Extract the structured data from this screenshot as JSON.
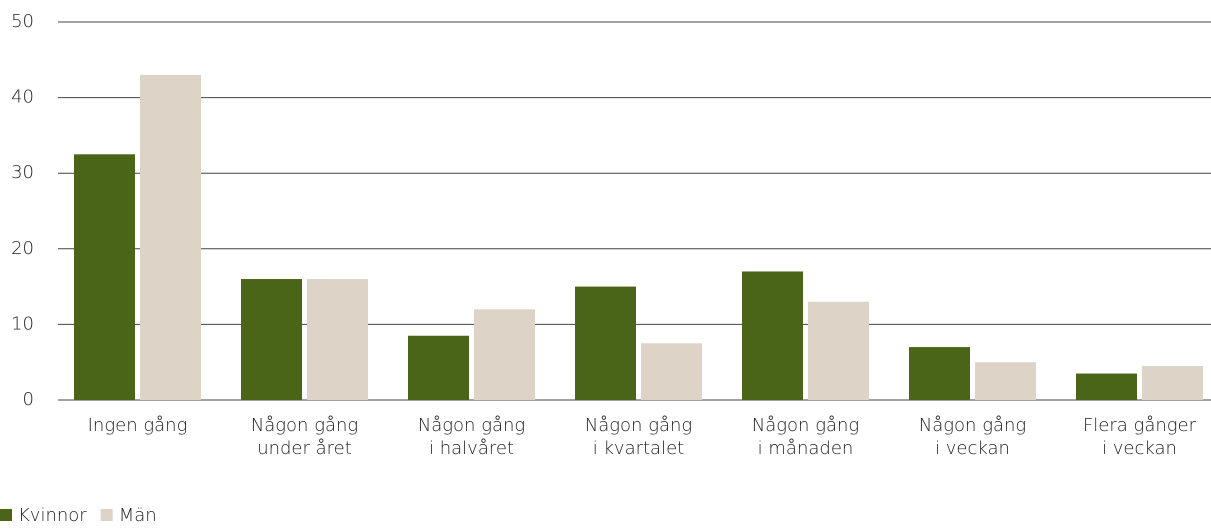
{
  "chart_data": {
    "type": "bar",
    "categories": [
      [
        "Ingen gång"
      ],
      [
        "Någon gång",
        "under året"
      ],
      [
        "Någon gång",
        "i halvåret"
      ],
      [
        "Någon gång",
        "i kvartalet"
      ],
      [
        "Någon gång",
        "i månaden"
      ],
      [
        "Någon gång",
        "i veckan"
      ],
      [
        "Flera gånger",
        "i veckan"
      ]
    ],
    "series": [
      {
        "name": "Kvinnor",
        "color": "#4a6418",
        "values": [
          32.5,
          16,
          8.5,
          15,
          17,
          7,
          3.5
        ]
      },
      {
        "name": "Män",
        "color": "#ddd3c6",
        "values": [
          43,
          16,
          12,
          7.5,
          13,
          5,
          4.5
        ]
      }
    ],
    "ylim": [
      0,
      50
    ],
    "yticks": [
      0,
      10,
      20,
      30,
      40,
      50
    ],
    "grid": true,
    "legend": "bottom-left"
  }
}
